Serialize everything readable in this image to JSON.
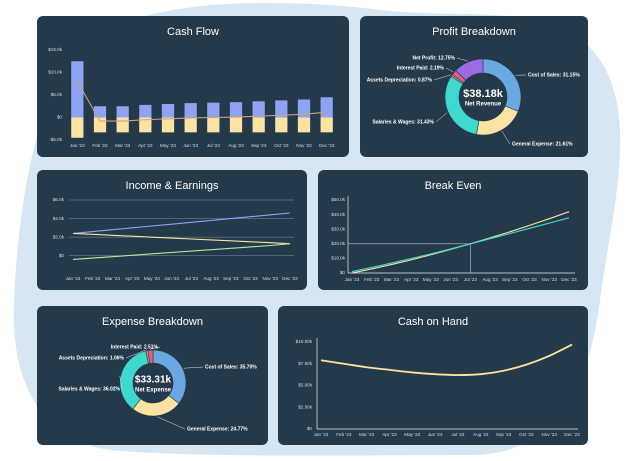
{
  "chart_data": [
    {
      "type": "bar",
      "title": "Cash Flow",
      "categories": [
        "Jan '23",
        "Feb '23",
        "Mar '23",
        "Apr '23",
        "May '23",
        "Jun '23",
        "Jul '23",
        "Aug '23",
        "Sep '23",
        "Oct '23",
        "Nov '23",
        "Dec '23"
      ],
      "series": [
        {
          "color": "#8fa3f3",
          "values": [
            12500,
            2500,
            2500,
            2800,
            3000,
            3200,
            3300,
            3400,
            3600,
            3800,
            4000,
            4500
          ]
        },
        {
          "color": "#fde3a2",
          "values": [
            -4500,
            -3300,
            -3300,
            -3300,
            -3300,
            -3300,
            -3300,
            -3300,
            -3300,
            -3300,
            -3300,
            -3300
          ]
        },
        {
          "type": "line",
          "color": "#d6a07c",
          "values": [
            8000,
            -800,
            -800,
            -500,
            -300,
            -100,
            0,
            100,
            300,
            500,
            700,
            1200
          ]
        }
      ],
      "ylim": [
        -5000,
        15000
      ],
      "yticks": [
        {
          "value": -5000,
          "label": "-$5.0k"
        },
        {
          "value": 0,
          "label": "$0"
        },
        {
          "value": 5000,
          "label": "$5.0k"
        },
        {
          "value": 10000,
          "label": "$10.0k"
        },
        {
          "value": 15000,
          "label": "$15.0k"
        }
      ]
    },
    {
      "type": "pie",
      "title": "Profit Breakdown",
      "values": [
        31.15,
        21.61,
        31.43,
        0.87,
        2.19,
        12.75
      ],
      "value_labels": [
        "Cost of Sales: 31.15%",
        "General Expense: 21.61%",
        "Salaries & Wages: 31.43%",
        "Assets Depreciation: 0.87%",
        "Interest Paid: 2.19%",
        "Net Profit: 12.75%"
      ],
      "colors": [
        "#6aa8e2",
        "#fde3a2",
        "#3dd9cf",
        "#ea8a6e",
        "#e25d83",
        "#9a6be3"
      ],
      "center_label": "$38.18k",
      "center_caption": "Net Revenue"
    },
    {
      "type": "line",
      "title": "Income & Earnings",
      "categories": [
        "Jan '23",
        "Feb '23",
        "Mar '23",
        "Apr '23",
        "May '23",
        "Jun '23",
        "Jul '23",
        "Aug '23",
        "Sep '23",
        "Oct '23",
        "Nov '23",
        "Dec '23"
      ],
      "series": [
        {
          "color": "#8fa3f3",
          "values": [
            2400,
            2600,
            2800,
            3000,
            3200,
            3400,
            3600,
            3800,
            4000,
            4200,
            4400,
            4600
          ]
        },
        {
          "color": "#fde3a2",
          "values": [
            2400,
            2300,
            2200,
            2100,
            2000,
            1900,
            1800,
            1700,
            1600,
            1500,
            1400,
            1300
          ]
        },
        {
          "color": "#b9e6a8",
          "values": [
            -400,
            -250,
            -100,
            50,
            200,
            350,
            500,
            650,
            800,
            950,
            1100,
            1300
          ]
        }
      ],
      "ylim": [
        -1000,
        6000
      ],
      "yticks": [
        {
          "value": 0,
          "label": "$0"
        },
        {
          "value": 2000,
          "label": "$2.0k"
        },
        {
          "value": 4000,
          "label": "$4.0k"
        },
        {
          "value": 6000,
          "label": "$6.0k"
        }
      ],
      "grid": true
    },
    {
      "type": "line",
      "title": "Break Even",
      "categories": [
        "Jan '23",
        "Feb '23",
        "Mar '23",
        "Apr '23",
        "May '23",
        "Jun '23",
        "Jul '23",
        "Aug '23",
        "Sep '23",
        "Oct '23",
        "Nov '23",
        "Dec '23"
      ],
      "series": [
        {
          "color": "#fde3a2",
          "values": [
            0,
            2800,
            5800,
            9000,
            12500,
            16200,
            20000,
            24000,
            28200,
            32600,
            37200,
            42000
          ]
        },
        {
          "color": "#3dd9cf",
          "values": [
            1000,
            3800,
            6800,
            9900,
            13100,
            16500,
            20000,
            23500,
            27000,
            30600,
            34200,
            37800
          ]
        }
      ],
      "ylim": [
        0,
        50000
      ],
      "yticks": [
        {
          "value": 0,
          "label": "$0"
        },
        {
          "value": 10000,
          "label": "$10.0k"
        },
        {
          "value": 20000,
          "label": "$20.0k"
        },
        {
          "value": 30000,
          "label": "$30.0k"
        },
        {
          "value": 40000,
          "label": "$40.0k"
        },
        {
          "value": 50000,
          "label": "$50.0k"
        }
      ],
      "break_even": {
        "category": "Jul '23",
        "value": 20000
      }
    },
    {
      "type": "pie",
      "title": "Expense Breakdown",
      "values": [
        35.7,
        24.77,
        36.02,
        1.06,
        2.51
      ],
      "value_labels": [
        "Cost of Sales: 35.70%",
        "General Expense: 24.77%",
        "Salaries & Wages: 36.02%",
        "Assets Depreciation: 1.06%",
        "Interest Paid: 2.51%"
      ],
      "colors": [
        "#6aa8e2",
        "#fde3a2",
        "#3dd9cf",
        "#ea8a6e",
        "#e25d83"
      ],
      "center_label": "$33.31k",
      "center_caption": "Net Expense"
    },
    {
      "type": "line",
      "title": "Cash on Hand",
      "smooth": true,
      "categories": [
        "Jan '23",
        "Feb '23",
        "Mar '23",
        "Apr '23",
        "May '23",
        "Jun '23",
        "Jul '23",
        "Aug '23",
        "Sep '23",
        "Oct '23",
        "Nov '23",
        "Dec '23"
      ],
      "series": [
        {
          "color": "#fde3a2",
          "values": [
            7900,
            7500,
            7100,
            6800,
            6500,
            6300,
            6200,
            6300,
            6700,
            7400,
            8400,
            9700
          ]
        }
      ],
      "ylim": [
        0,
        10000
      ],
      "yticks": [
        {
          "value": 0,
          "label": "$0"
        },
        {
          "value": 2500,
          "label": "$2.50k"
        },
        {
          "value": 5000,
          "label": "$5.00k"
        },
        {
          "value": 7500,
          "label": "$7.50k"
        },
        {
          "value": 10000,
          "label": "$10.00k"
        }
      ]
    }
  ]
}
